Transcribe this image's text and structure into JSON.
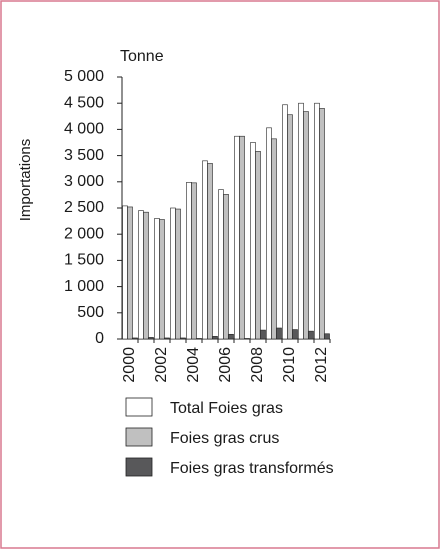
{
  "chart_data": {
    "type": "bar",
    "y_label": "Tonne",
    "y_axis_title": "Importations",
    "categories": [
      "2000",
      null,
      "2002",
      null,
      "2004",
      null,
      "2006",
      null,
      "2008",
      null,
      "2010",
      null,
      "2012"
    ],
    "series": [
      {
        "name": "Total Foies gras",
        "color": "#ffffff",
        "values": [
          2540,
          2450,
          2300,
          2500,
          2990,
          3400,
          2850,
          3870,
          3750,
          4030,
          4470,
          4500,
          4500
        ]
      },
      {
        "name": "Foies gras crus",
        "color": "#c0c0c0",
        "values": [
          2520,
          2420,
          2280,
          2480,
          2980,
          3350,
          2760,
          3870,
          3580,
          3820,
          4280,
          4340,
          4400
        ]
      },
      {
        "name": "Foies gras transformés",
        "color": "#58585a",
        "values": [
          20,
          30,
          20,
          20,
          10,
          50,
          90,
          10,
          170,
          210,
          180,
          150,
          100
        ]
      }
    ],
    "ylim": [
      0,
      5000
    ],
    "yticks": [
      0,
      500,
      {
        "value": 1000,
        "label": "1 000"
      },
      {
        "value": 1500,
        "label": "1 500"
      },
      {
        "value": 2000,
        "label": "2 000"
      },
      {
        "value": 2500,
        "label": "2 500"
      },
      {
        "value": 3000,
        "label": "3 000"
      },
      {
        "value": 3500,
        "label": "3 500"
      },
      {
        "value": 4000,
        "label": "4 000"
      },
      {
        "value": 4500,
        "label": "4 500"
      },
      {
        "value": 5000,
        "label": "5 000"
      }
    ]
  }
}
